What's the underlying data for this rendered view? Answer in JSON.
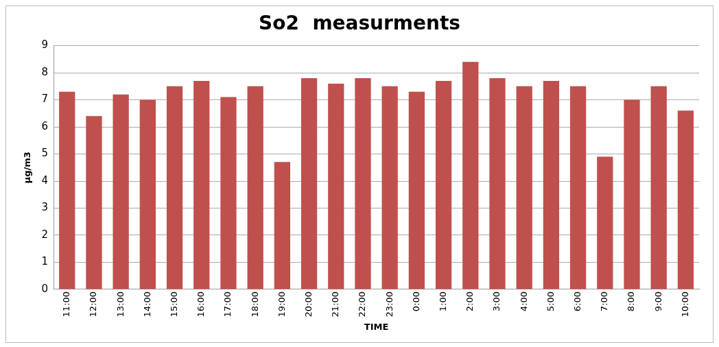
{
  "chart_data": {
    "type": "bar",
    "title": "So2  measurments",
    "xlabel": "TIME",
    "ylabel": "µg/m3",
    "categories": [
      "11:00",
      "12:00",
      "13:00",
      "14:00",
      "15:00",
      "16:00",
      "17:00",
      "18:00",
      "19:00",
      "20:00",
      "21:00",
      "22:00",
      "23:00",
      "0:00",
      "1:00",
      "2:00",
      "3:00",
      "4:00",
      "5:00",
      "6:00",
      "7:00",
      "8:00",
      "9:00",
      "10:00"
    ],
    "values": [
      7.3,
      6.4,
      7.2,
      7.0,
      7.5,
      7.7,
      7.1,
      7.5,
      4.7,
      7.8,
      7.6,
      7.8,
      7.5,
      7.3,
      7.7,
      8.4,
      7.8,
      7.5,
      7.7,
      7.5,
      4.9,
      7.0,
      7.5,
      6.6
    ],
    "color": "#c0504d",
    "ylim": [
      0,
      9
    ],
    "yticks": [
      0,
      1,
      2,
      3,
      4,
      5,
      6,
      7,
      8,
      9
    ],
    "grid": "y",
    "legend": false
  }
}
